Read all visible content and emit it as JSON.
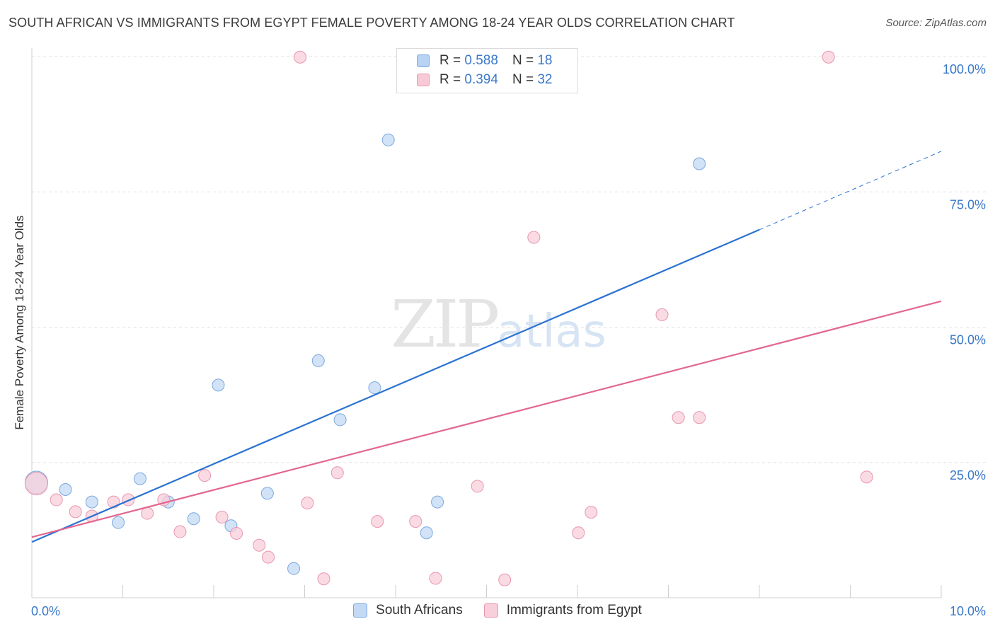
{
  "header": {
    "title": "SOUTH AFRICAN VS IMMIGRANTS FROM EGYPT FEMALE POVERTY AMONG 18-24 YEAR OLDS CORRELATION CHART",
    "source": "Source: ZipAtlas.com"
  },
  "watermark": {
    "zip": "ZIP",
    "atlas": "atlas"
  },
  "legend": {
    "rows": [
      {
        "r_label": "R = ",
        "r_value": "0.588",
        "n_label": "N = ",
        "n_value": "18",
        "color": "#b8d3f3",
        "border": "#7aa8de"
      },
      {
        "r_label": "R = ",
        "r_value": "0.394",
        "n_label": "N = ",
        "n_value": "32",
        "color": "#f8c9d6",
        "border": "#e896ae"
      }
    ]
  },
  "bottom_legend": {
    "series1": "South Africans",
    "series2": "Immigrants from Egypt"
  },
  "chart_data": {
    "type": "scatter",
    "title": "SOUTH AFRICAN VS IMMIGRANTS FROM EGYPT FEMALE POVERTY AMONG 18-24 YEAR OLDS CORRELATION CHART",
    "xlabel": "",
    "ylabel": "Female Poverty Among 18-24 Year Olds",
    "xlim": [
      0,
      10
    ],
    "ylim": [
      0,
      100
    ],
    "x_ticks": [
      "0.0%",
      "10.0%"
    ],
    "y_ticks": [
      {
        "value": 25,
        "label": "25.0%"
      },
      {
        "value": 50,
        "label": "50.0%"
      },
      {
        "value": 75,
        "label": "75.0%"
      },
      {
        "value": 100,
        "label": "100.0%"
      }
    ],
    "grid": true,
    "series": [
      {
        "name": "South Africans",
        "color": "#7aa8de",
        "fill": "#c3d9f4",
        "trend_color": "#2a72d2",
        "trend": {
          "x0": 0,
          "y0": 10.3,
          "x1": 8.0,
          "y1": 68.0,
          "dash_to_x": 10.0,
          "dash_to_y": 82.5
        },
        "points": [
          {
            "x": 0.05,
            "y": 21.3,
            "big": true
          },
          {
            "x": 0.37,
            "y": 20.0
          },
          {
            "x": 0.66,
            "y": 17.7
          },
          {
            "x": 0.95,
            "y": 13.9
          },
          {
            "x": 1.19,
            "y": 22.0
          },
          {
            "x": 1.5,
            "y": 17.7
          },
          {
            "x": 1.78,
            "y": 14.6
          },
          {
            "x": 2.05,
            "y": 39.3
          },
          {
            "x": 2.19,
            "y": 13.3
          },
          {
            "x": 2.59,
            "y": 19.3
          },
          {
            "x": 2.88,
            "y": 5.4
          },
          {
            "x": 3.15,
            "y": 43.8
          },
          {
            "x": 3.39,
            "y": 32.9
          },
          {
            "x": 3.77,
            "y": 38.8
          },
          {
            "x": 3.92,
            "y": 84.6
          },
          {
            "x": 4.34,
            "y": 12.0
          },
          {
            "x": 4.46,
            "y": 17.7
          },
          {
            "x": 7.34,
            "y": 80.2
          }
        ]
      },
      {
        "name": "Immigrants from Egypt",
        "color": "#e896ae",
        "fill": "#f8cfdb",
        "trend_color": "#e3678f",
        "trend": {
          "x0": 0,
          "y0": 11.2,
          "x1": 10.0,
          "y1": 54.8
        },
        "points": [
          {
            "x": 0.05,
            "y": 21.1,
            "big": true
          },
          {
            "x": 0.27,
            "y": 18.1
          },
          {
            "x": 0.48,
            "y": 15.9
          },
          {
            "x": 0.66,
            "y": 15.1
          },
          {
            "x": 0.9,
            "y": 17.7
          },
          {
            "x": 1.06,
            "y": 18.1
          },
          {
            "x": 1.27,
            "y": 15.6
          },
          {
            "x": 1.45,
            "y": 18.1
          },
          {
            "x": 1.63,
            "y": 12.2
          },
          {
            "x": 1.9,
            "y": 22.6
          },
          {
            "x": 2.09,
            "y": 14.9
          },
          {
            "x": 2.25,
            "y": 11.9
          },
          {
            "x": 2.5,
            "y": 9.7
          },
          {
            "x": 2.6,
            "y": 7.5
          },
          {
            "x": 2.95,
            "y": 99.9
          },
          {
            "x": 3.03,
            "y": 17.5
          },
          {
            "x": 3.21,
            "y": 3.5
          },
          {
            "x": 3.36,
            "y": 23.1
          },
          {
            "x": 3.8,
            "y": 14.1
          },
          {
            "x": 4.22,
            "y": 14.1
          },
          {
            "x": 4.44,
            "y": 3.6
          },
          {
            "x": 4.9,
            "y": 20.6
          },
          {
            "x": 5.2,
            "y": 3.3
          },
          {
            "x": 5.52,
            "y": 66.6
          },
          {
            "x": 5.93,
            "y": 99.9
          },
          {
            "x": 6.01,
            "y": 12.0
          },
          {
            "x": 6.15,
            "y": 15.8
          },
          {
            "x": 6.93,
            "y": 52.3
          },
          {
            "x": 7.11,
            "y": 33.3
          },
          {
            "x": 7.34,
            "y": 33.3
          },
          {
            "x": 8.76,
            "y": 99.9
          },
          {
            "x": 9.18,
            "y": 22.3
          }
        ]
      }
    ]
  }
}
